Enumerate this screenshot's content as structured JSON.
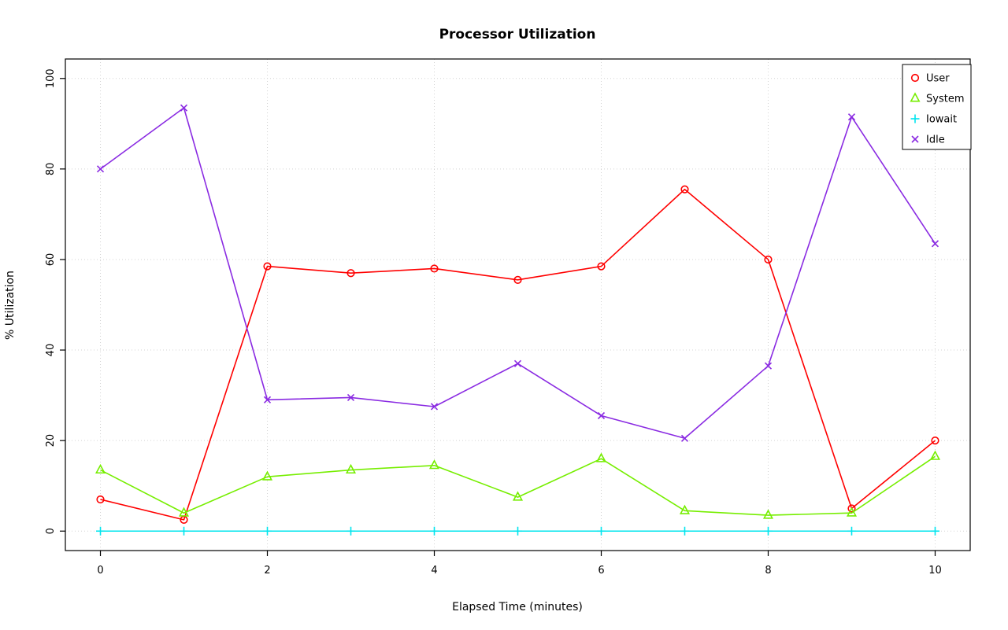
{
  "chart_data": {
    "type": "line",
    "title": "Processor Utilization",
    "xlabel": "Elapsed Time (minutes)",
    "ylabel": "% Utilization",
    "x": [
      0,
      1,
      2,
      3,
      4,
      5,
      6,
      7,
      8,
      9,
      10
    ],
    "xlim": [
      0,
      10
    ],
    "ylim": [
      0,
      100
    ],
    "x_ticks": [
      0,
      2,
      4,
      6,
      8,
      10
    ],
    "y_ticks": [
      0,
      20,
      40,
      60,
      80,
      100
    ],
    "grid": true,
    "grid_style": "dotted",
    "grid_color": "#d3d3d3",
    "legend_position": "top-right",
    "series": [
      {
        "name": "User",
        "color": "#ff0000",
        "marker": "circle",
        "values": [
          7,
          2.5,
          58.5,
          57,
          58,
          55.5,
          58.5,
          75.5,
          60,
          5,
          20
        ]
      },
      {
        "name": "System",
        "color": "#76ee00",
        "marker": "triangle",
        "values": [
          13.5,
          4,
          12,
          13.5,
          14.5,
          7.5,
          16,
          4.5,
          3.5,
          4,
          16.5
        ]
      },
      {
        "name": "Iowait",
        "color": "#00e5ee",
        "marker": "plus",
        "values": [
          0,
          0,
          0,
          0,
          0,
          0,
          0,
          0,
          0,
          0,
          0
        ]
      },
      {
        "name": "Idle",
        "color": "#8a2be2",
        "marker": "x",
        "values": [
          80,
          93.5,
          29,
          29.5,
          27.5,
          37,
          25.5,
          20.5,
          36.5,
          91.5,
          63.5
        ]
      }
    ]
  }
}
